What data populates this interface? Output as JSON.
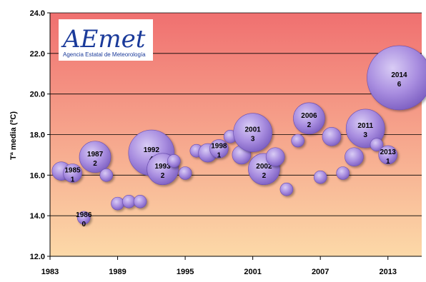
{
  "logo": {
    "main_text": "AEmet",
    "sub_text": "Agencia Estatal de Meteorología",
    "colors": {
      "text": "#1a3a9a",
      "accent": "#e03030"
    }
  },
  "chart_data": {
    "type": "bubble",
    "title": "",
    "xlabel": "",
    "ylabel": "Tª media (ºC)",
    "xlim": [
      1983,
      2016
    ],
    "ylim": [
      12.0,
      24.0
    ],
    "x_ticks": [
      "1983",
      "1989",
      "1995",
      "2001",
      "2007",
      "2013"
    ],
    "y_ticks": [
      "12.0",
      "14.0",
      "16.0",
      "18.0",
      "20.0",
      "22.0",
      "24.0"
    ],
    "background_gradient": {
      "top": "#f07070",
      "bottom": "#fcd9a8"
    },
    "bubble_color": "#a98ee0",
    "points": [
      {
        "year": 1984,
        "temp": 16.2,
        "size": 1,
        "label": ""
      },
      {
        "year": 1985,
        "temp": 16.1,
        "size": 1,
        "label": "1985"
      },
      {
        "year": 1986,
        "temp": 13.9,
        "size": 0,
        "label": "1986"
      },
      {
        "year": 1987,
        "temp": 16.9,
        "size": 2,
        "label": "1987"
      },
      {
        "year": 1988,
        "temp": 16.0,
        "size": 0,
        "label": ""
      },
      {
        "year": 1989,
        "temp": 14.6,
        "size": 0,
        "label": ""
      },
      {
        "year": 1990,
        "temp": 14.7,
        "size": 0,
        "label": ""
      },
      {
        "year": 1991,
        "temp": 14.7,
        "size": 0,
        "label": ""
      },
      {
        "year": 1992,
        "temp": 17.1,
        "size": 4,
        "label": "1992"
      },
      {
        "year": 1993,
        "temp": 16.3,
        "size": 2,
        "label": "1993"
      },
      {
        "year": 1994,
        "temp": 16.7,
        "size": 0,
        "label": ""
      },
      {
        "year": 1995,
        "temp": 16.1,
        "size": 0,
        "label": ""
      },
      {
        "year": 1996,
        "temp": 17.2,
        "size": 0,
        "label": ""
      },
      {
        "year": 1997,
        "temp": 17.1,
        "size": 1,
        "label": ""
      },
      {
        "year": 1998,
        "temp": 17.3,
        "size": 1,
        "label": "1998"
      },
      {
        "year": 1999,
        "temp": 17.9,
        "size": 0,
        "label": ""
      },
      {
        "year": 2000,
        "temp": 17.0,
        "size": 1,
        "label": ""
      },
      {
        "year": 2001,
        "temp": 18.1,
        "size": 3,
        "label": "2001"
      },
      {
        "year": 2002,
        "temp": 16.3,
        "size": 2,
        "label": "2002"
      },
      {
        "year": 2003,
        "temp": 16.9,
        "size": 1,
        "label": ""
      },
      {
        "year": 2004,
        "temp": 15.3,
        "size": 0,
        "label": ""
      },
      {
        "year": 2005,
        "temp": 17.7,
        "size": 0,
        "label": ""
      },
      {
        "year": 2006,
        "temp": 18.8,
        "size": 2,
        "label": "2006"
      },
      {
        "year": 2007,
        "temp": 15.9,
        "size": 0,
        "label": ""
      },
      {
        "year": 2008,
        "temp": 17.9,
        "size": 1,
        "label": ""
      },
      {
        "year": 2009,
        "temp": 16.1,
        "size": 0,
        "label": ""
      },
      {
        "year": 2010,
        "temp": 16.9,
        "size": 1,
        "label": ""
      },
      {
        "year": 2011,
        "temp": 18.3,
        "size": 3,
        "label": "2011"
      },
      {
        "year": 2012,
        "temp": 17.5,
        "size": 0,
        "label": ""
      },
      {
        "year": 2013,
        "temp": 17.0,
        "size": 1,
        "label": "2013"
      },
      {
        "year": 2014,
        "temp": 20.8,
        "size": 6,
        "label": "2014"
      }
    ]
  }
}
